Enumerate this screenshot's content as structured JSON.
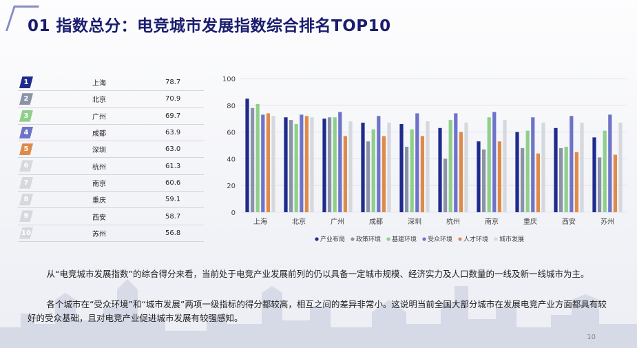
{
  "title": "01 指数总分：电竞城市发展指数综合排名TOP10",
  "ranking": [
    {
      "rank": "1",
      "city": "上海",
      "score": "78.7",
      "badge_color": "#1f2b8c"
    },
    {
      "rank": "2",
      "city": "北京",
      "score": "70.9",
      "badge_color": "#8a93a8"
    },
    {
      "rank": "3",
      "city": "广州",
      "score": "69.7",
      "badge_color": "#8fcf8a"
    },
    {
      "rank": "4",
      "city": "成都",
      "score": "63.9",
      "badge_color": "#6d73c8"
    },
    {
      "rank": "5",
      "city": "深圳",
      "score": "63.0",
      "badge_color": "#e08a4a"
    },
    {
      "rank": "6",
      "city": "杭州",
      "score": "61.3",
      "badge_color": "#d5d8dd"
    },
    {
      "rank": "7",
      "city": "南京",
      "score": "60.6",
      "badge_color": "#d5d8dd"
    },
    {
      "rank": "8",
      "city": "重庆",
      "score": "59.1",
      "badge_color": "#d5d8dd"
    },
    {
      "rank": "9",
      "city": "西安",
      "score": "58.7",
      "badge_color": "#d5d8dd"
    },
    {
      "rank": "10",
      "city": "苏州",
      "score": "56.8",
      "badge_color": "#d5d8dd"
    }
  ],
  "chart_data": {
    "type": "bar",
    "categories": [
      "上海",
      "北京",
      "广州",
      "成都",
      "深圳",
      "杭州",
      "南京",
      "重庆",
      "西安",
      "苏州"
    ],
    "ylim": [
      0,
      100
    ],
    "yticks": [
      0,
      20,
      40,
      60,
      80,
      100
    ],
    "legend_position": "bottom",
    "grid": true,
    "series": [
      {
        "name": "产业布局",
        "color": "#1f2b8c",
        "values": [
          85,
          71,
          70,
          67,
          66,
          63,
          53,
          60,
          63,
          56
        ]
      },
      {
        "name": "政策环境",
        "color": "#8a93a8",
        "values": [
          78,
          69,
          71,
          53,
          49,
          40,
          47,
          48,
          48,
          41
        ]
      },
      {
        "name": "基建环境",
        "color": "#8fcf8a",
        "values": [
          81,
          66,
          71,
          62,
          62,
          69,
          71,
          61,
          49,
          61
        ]
      },
      {
        "name": "受众环境",
        "color": "#6d73c8",
        "values": [
          73,
          73,
          75,
          72,
          74,
          74,
          75,
          71,
          72,
          73
        ]
      },
      {
        "name": "人才环境",
        "color": "#e08a4a",
        "values": [
          74,
          72,
          57,
          57,
          57,
          60,
          53,
          44,
          45,
          43
        ]
      },
      {
        "name": "城市发展",
        "color": "#d5d8dd",
        "values": [
          72,
          71,
          68,
          67,
          68,
          67,
          69,
          67,
          67,
          67
        ]
      }
    ]
  },
  "paragraphs": {
    "p1": "从“电竞城市发展指数”的综合得分来看，当前处于电竞产业发展前列的仍以具备一定城市规模、经济实力及人口数量的一线及新一线城市为主。",
    "p2": "各个城市在“受众环境”和“城市发展”两项一级指标的得分都较高，相互之间的差异非常小。这说明当前全国大部分城市在发展电竞产业方面都具有较好的受众基础，且对电竞产业促进城市发展有较强感知。"
  },
  "page_number": "10"
}
